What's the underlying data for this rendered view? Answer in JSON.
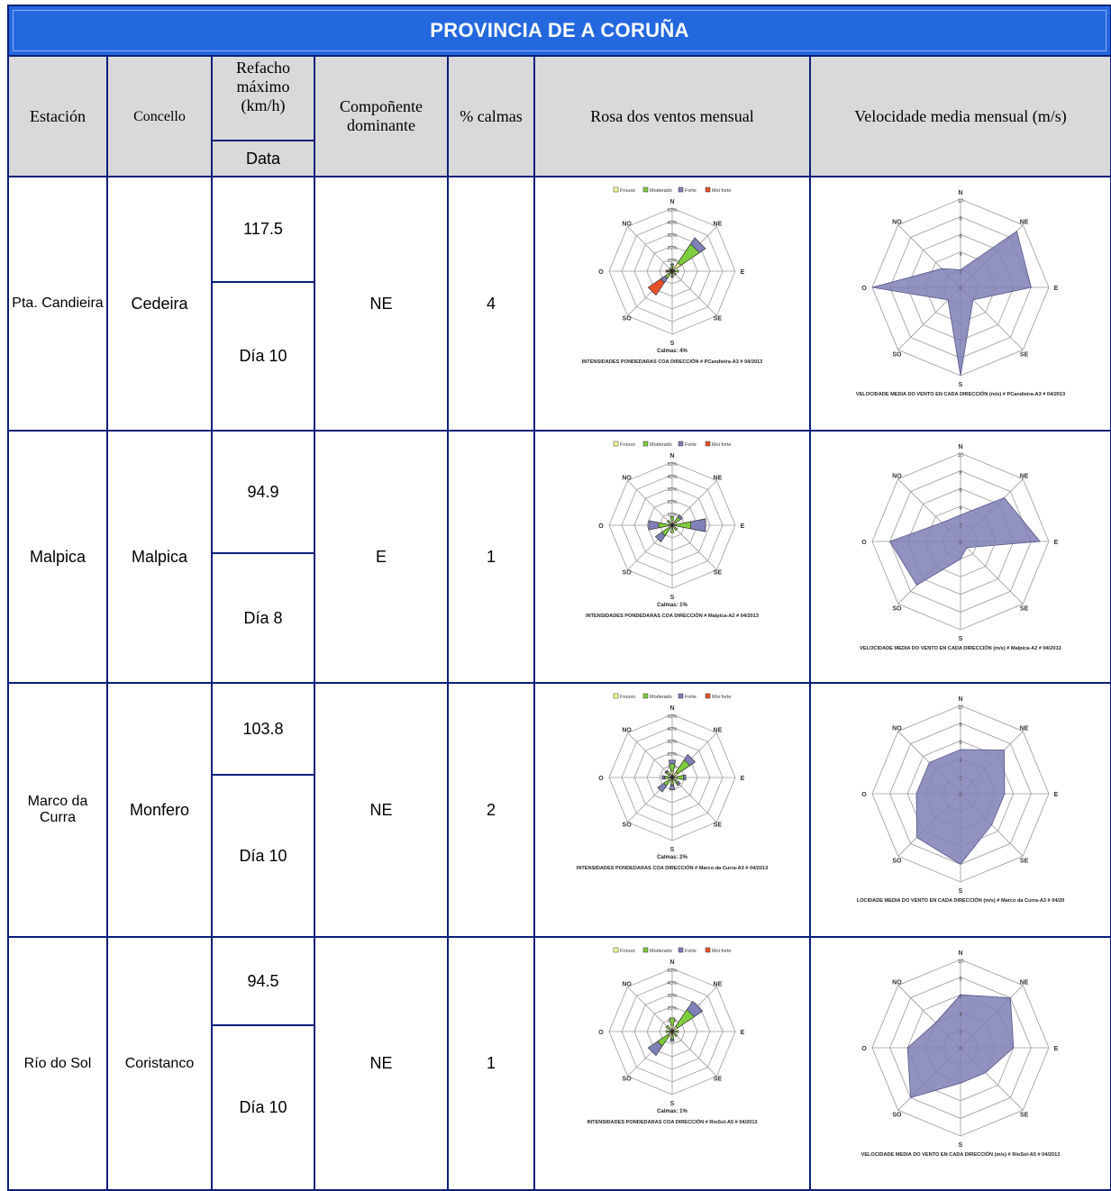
{
  "title": "PROVINCIA DE A CORUÑA",
  "headers": {
    "estacion": "Estación",
    "concello": "Concello",
    "refacho": "Refacho máximo (km/h)",
    "data": "Data",
    "componente": "Compoñente dominante",
    "calmas": "% calmas",
    "rosa": "Rosa dos ventos mensual",
    "velocidade": "Velocidade media mensual (m/s)"
  },
  "rose_legend": [
    "Frouxo",
    "Moderado",
    "Forte",
    "Moi forte"
  ],
  "rose_directions": [
    "N",
    "NE",
    "E",
    "SE",
    "S",
    "SO",
    "O",
    "NO"
  ],
  "rose_rings": [
    "10%",
    "20%",
    "30%",
    "40%",
    "50%"
  ],
  "speed_rings": [
    "0",
    "2",
    "4",
    "6",
    "8",
    "10"
  ],
  "colors": {
    "frouxo": "#ffffa0",
    "moderado": "#7fcc3c",
    "forte": "#8080b8",
    "moi_forte": "#e8502a",
    "title_bg": "#2468e0",
    "header_bg": "#d9d9d9",
    "border": "#0a1f7a",
    "speed_fill": "#7f7fb5"
  },
  "rows": [
    {
      "estacion": "Pta. Candieira",
      "concello": "Cedeira",
      "refacho": "117.5",
      "data": "Día 10",
      "componente": "NE",
      "calmas": "4",
      "rose_calmas_label": "Calmas: 4%",
      "rose_caption": "INTENSIDADES PONDEDARAS COA DIRECCIÓN # PCandieira-A3 # 04/2013",
      "speed_caption": "VELOCIDADE MEDIA DO VENTO EN CADA DIRECCIÓN (m/s) # PCandieira-A3 # 04/2013",
      "rose": {
        "N": [
          3,
          2,
          1,
          0
        ],
        "NE": [
          8,
          18,
          6,
          0
        ],
        "E": [
          2,
          3,
          0,
          0
        ],
        "SE": [
          3,
          1,
          0,
          0
        ],
        "S": [
          2,
          2,
          0,
          1
        ],
        "SO": [
          2,
          5,
          4,
          12
        ],
        "O": [
          2,
          1,
          1,
          1
        ],
        "NO": [
          2,
          1,
          0,
          0
        ]
      },
      "speed": {
        "N": 2,
        "NE": 9,
        "E": 8,
        "SE": 2,
        "S": 10,
        "SO": 2,
        "O": 10,
        "NO": 3
      }
    },
    {
      "estacion": "Malpica",
      "concello": "Malpica",
      "refacho": "94.9",
      "data": "Día 8",
      "componente": "E",
      "calmas": "1",
      "rose_calmas_label": "Calmas: 1%",
      "rose_caption": "INTENSIDADES PONDEDARAS COA DIRECCIÓN # Malpica-A2 # 04/2013",
      "speed_caption": "VELOCIDADE MEDIA DO VENTO EN CADA DIRECCIÓN (m/s) # Malpica-A2 # 04/2013",
      "rose": {
        "N": [
          4,
          3,
          0,
          0
        ],
        "NE": [
          3,
          5,
          2,
          0
        ],
        "E": [
          3,
          12,
          12,
          0
        ],
        "SE": [
          3,
          2,
          0,
          0
        ],
        "S": [
          3,
          3,
          0,
          0
        ],
        "SO": [
          3,
          7,
          6,
          0
        ],
        "O": [
          3,
          8,
          8,
          0
        ],
        "NO": [
          3,
          2,
          0,
          0
        ]
      },
      "speed": {
        "N": 3,
        "NE": 7,
        "E": 9,
        "SE": 1,
        "S": 2,
        "SO": 7,
        "O": 8,
        "NO": 3
      }
    },
    {
      "estacion": "Marco da Curra",
      "concello": "Monfero",
      "refacho": "103.8",
      "data": "Día 10",
      "componente": "NE",
      "calmas": "2",
      "rose_calmas_label": "Calmas: 2%",
      "rose_caption": "INTENSIDADES PONDEDARAS COA DIRECCIÓN # Marco da Curra-A3 # 04/2013",
      "speed_caption": "LOCIDADE MEDIA DO VENTO EN CADA DIRECCIÓN (m/s) # Marco da Curra-A3 # 04/20",
      "rose": {
        "N": [
          5,
          6,
          3,
          0
        ],
        "NE": [
          5,
          12,
          5,
          0
        ],
        "E": [
          4,
          5,
          2,
          0
        ],
        "SE": [
          3,
          3,
          2,
          0
        ],
        "S": [
          3,
          3,
          4,
          0
        ],
        "SO": [
          3,
          5,
          6,
          0
        ],
        "O": [
          3,
          3,
          2,
          0
        ],
        "NO": [
          3,
          3,
          1,
          0
        ]
      },
      "speed": {
        "N": 5,
        "NE": 7,
        "E": 5,
        "SE": 5,
        "S": 8,
        "SO": 7,
        "O": 5,
        "NO": 5
      }
    },
    {
      "estacion": "Río do Sol",
      "concello": "Coristanco",
      "refacho": "94.5",
      "data": "Día 10",
      "componente": "NE",
      "calmas": "1",
      "rose_calmas_label": "Calmas: 1%",
      "rose_caption": "INTENSIDADES PONDEDARAS COA DIRECCIÓN # RíoSol-A5 # 04/2013",
      "speed_caption": "VELOCIDADE MEDIA DO VENTO EN CADA DIRECCIÓN (m/s) # RíoSol-A5 # 04/2013",
      "rose": {
        "N": [
          5,
          6,
          0,
          0
        ],
        "NE": [
          5,
          16,
          8,
          0
        ],
        "E": [
          3,
          2,
          0,
          0
        ],
        "SE": [
          3,
          2,
          0,
          0
        ],
        "S": [
          3,
          3,
          2,
          0
        ],
        "SO": [
          4,
          10,
          9,
          0
        ],
        "O": [
          3,
          2,
          0,
          0
        ],
        "NO": [
          3,
          3,
          0,
          0
        ]
      },
      "speed": {
        "N": 6,
        "NE": 8,
        "E": 6,
        "SE": 4,
        "S": 4,
        "SO": 8,
        "O": 6,
        "NO": 4
      }
    }
  ]
}
